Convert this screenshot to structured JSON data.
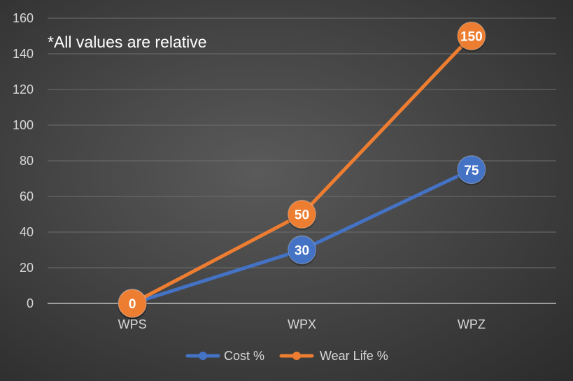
{
  "chart_data": {
    "type": "line",
    "title": "",
    "annotation": "*All values are relative",
    "categories": [
      "WPS",
      "WPX",
      "WPZ"
    ],
    "series": [
      {
        "name": "Cost %",
        "color": "#4472c4",
        "values": [
          0,
          30,
          75
        ]
      },
      {
        "name": "Wear Life %",
        "color": "#ed7d31",
        "values": [
          0,
          50,
          150
        ]
      }
    ],
    "ylim": [
      0,
      160
    ],
    "yticks": [
      0,
      20,
      40,
      60,
      80,
      100,
      120,
      140,
      160
    ],
    "xlabel": "",
    "ylabel": "",
    "grid": true,
    "legend": "bottom"
  }
}
